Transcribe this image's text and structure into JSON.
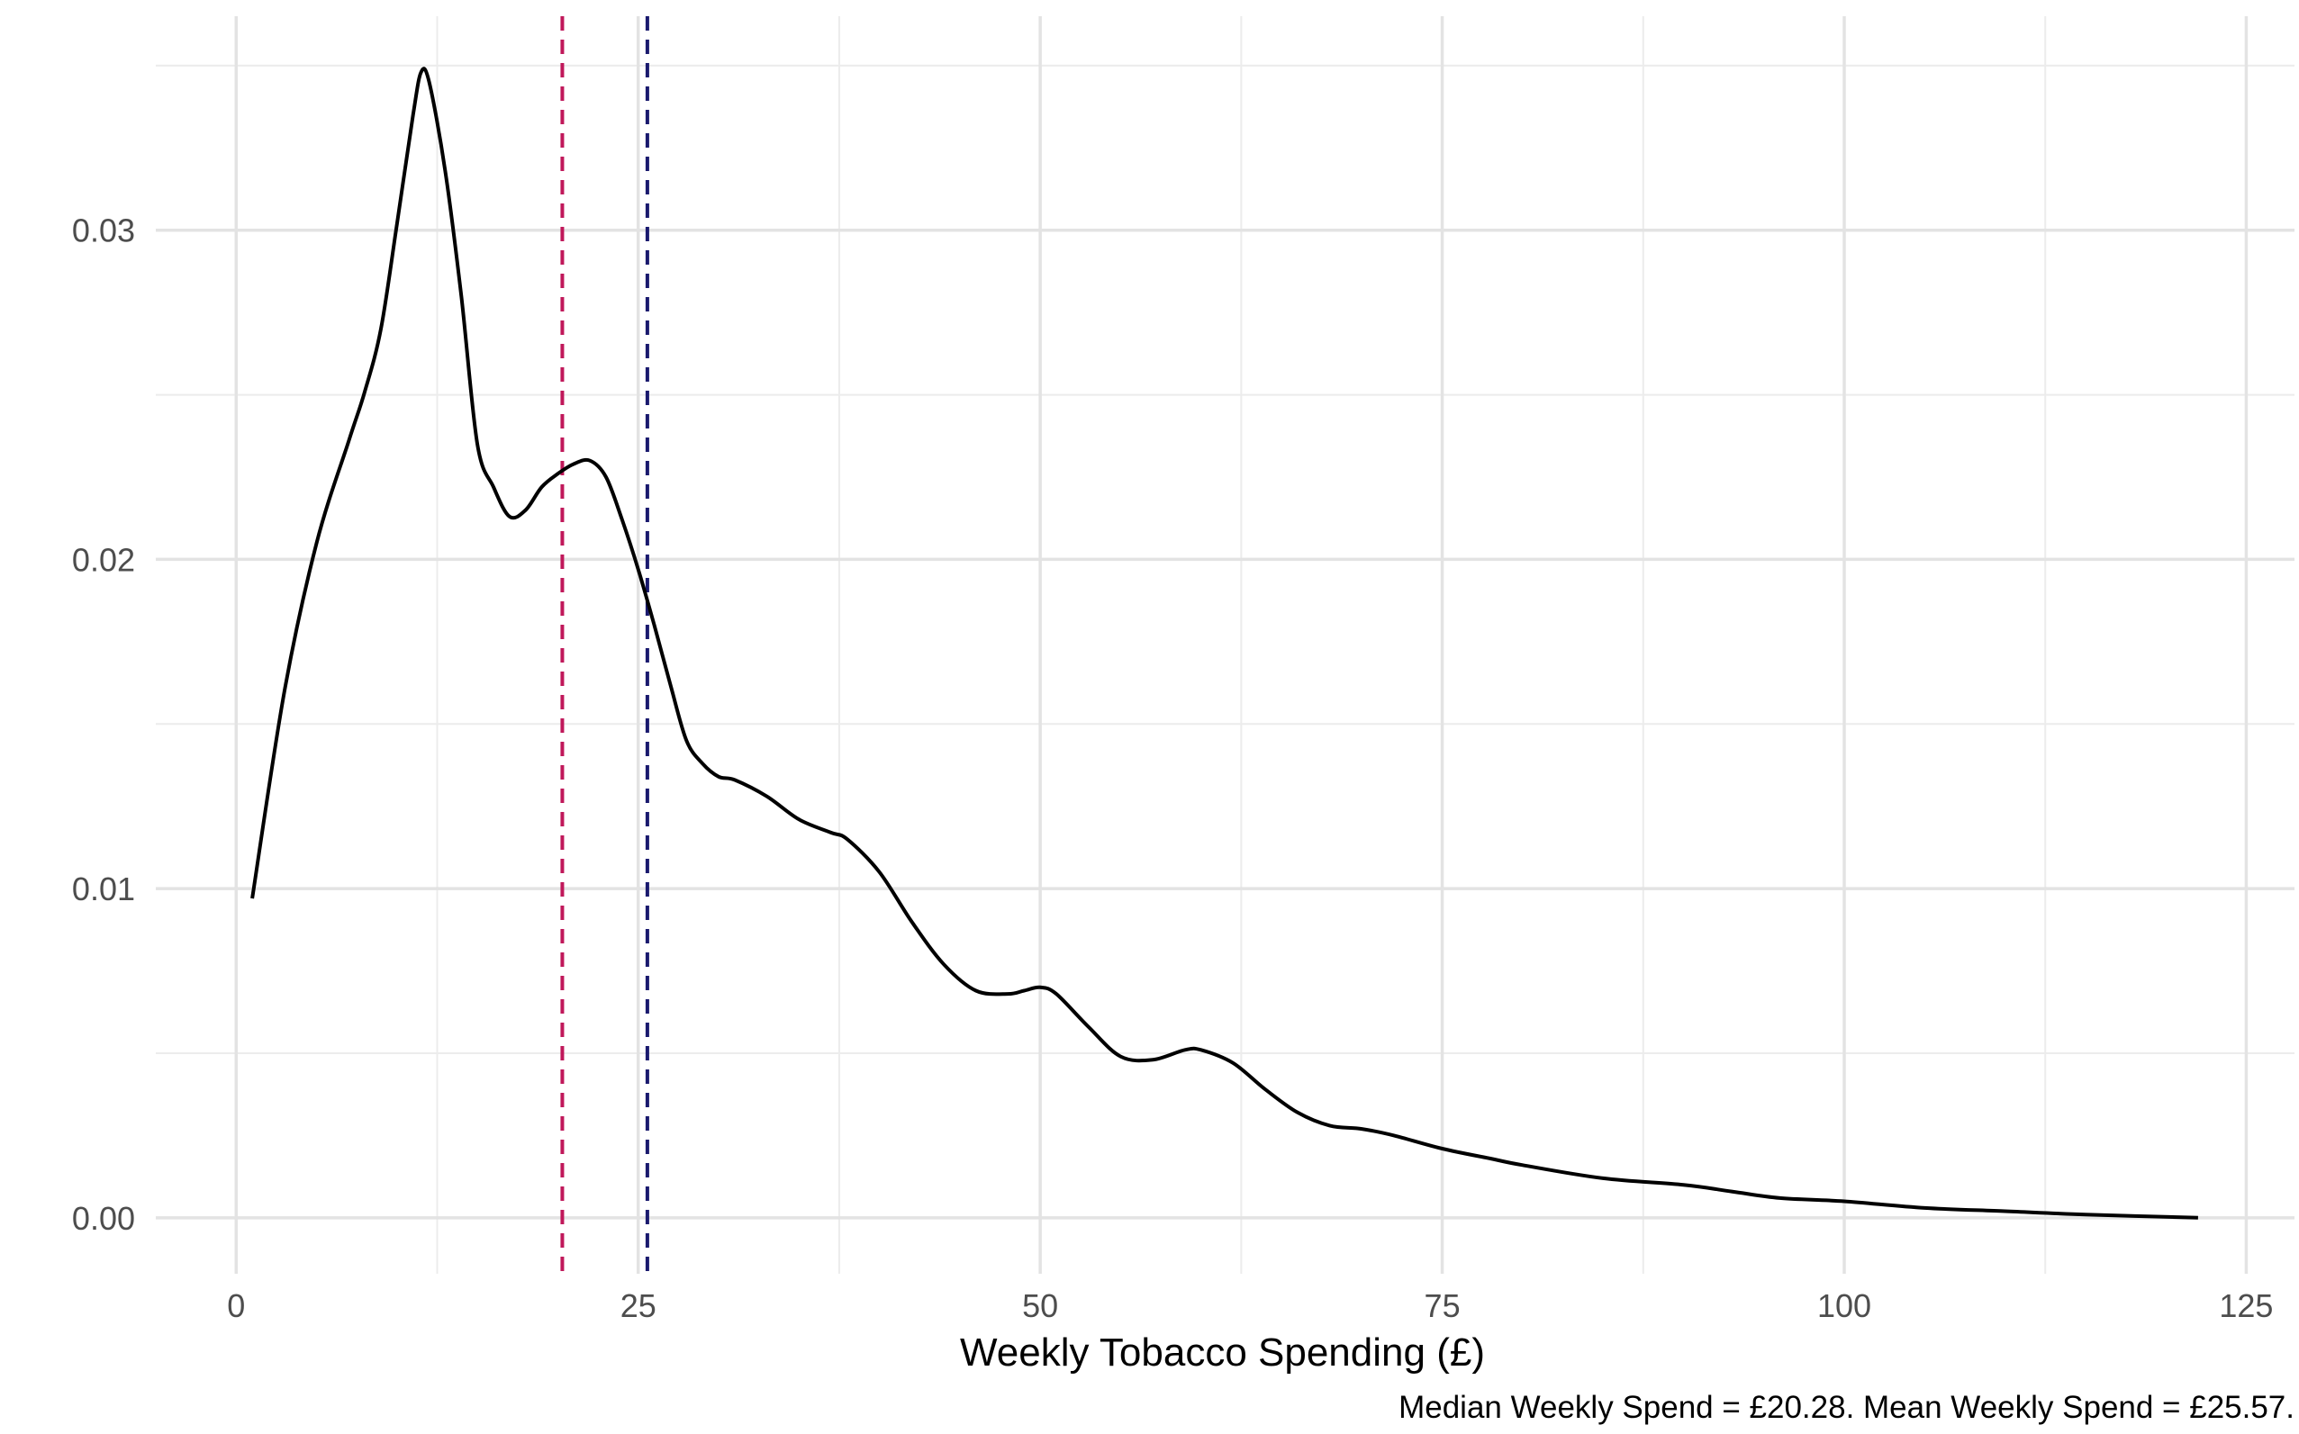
{
  "chart_data": {
    "type": "line",
    "title": "",
    "xlabel": "Weekly Tobacco Spending (£)",
    "ylabel": "",
    "caption": "Median Weekly Spend = £20.28. Mean Weekly Spend = £25.57.",
    "xlim": [
      -5,
      128
    ],
    "ylim": [
      -0.0017,
      0.0365
    ],
    "x_ticks": [
      0,
      25,
      50,
      75,
      100,
      125
    ],
    "x_tick_labels": [
      "0",
      "25",
      "50",
      "75",
      "100",
      "125"
    ],
    "y_ticks": [
      0.0,
      0.01,
      0.02,
      0.03
    ],
    "y_tick_labels": [
      "0.00",
      "0.01",
      "0.02",
      "0.03"
    ],
    "grid": true,
    "legend": "none",
    "series": [
      {
        "color": "#000000",
        "x": [
          1,
          3,
          5,
          7,
          8,
          9,
          10,
          11,
          11.5,
          12,
          13,
          14,
          15,
          16,
          17,
          18,
          19,
          20,
          21,
          22,
          23,
          24,
          25,
          26,
          27,
          28,
          29,
          30,
          31,
          33,
          35,
          37,
          38,
          40,
          42,
          44,
          46,
          48,
          49,
          50,
          51,
          53,
          55,
          57,
          59,
          60,
          62,
          64,
          66,
          68,
          70,
          72,
          75,
          78,
          80,
          85,
          90,
          93,
          96,
          100,
          105,
          110,
          115,
          122
        ],
        "y": [
          0.0097,
          0.016,
          0.0205,
          0.0236,
          0.0251,
          0.027,
          0.0302,
          0.0335,
          0.0348,
          0.0345,
          0.0318,
          0.028,
          0.0235,
          0.0222,
          0.0213,
          0.0215,
          0.0222,
          0.0226,
          0.0229,
          0.023,
          0.0225,
          0.0212,
          0.0197,
          0.018,
          0.0162,
          0.0145,
          0.0138,
          0.0134,
          0.0133,
          0.0128,
          0.0121,
          0.0117,
          0.0115,
          0.0105,
          0.009,
          0.0077,
          0.0069,
          0.0068,
          0.0069,
          0.007,
          0.0068,
          0.0058,
          0.0049,
          0.0048,
          0.0051,
          0.0051,
          0.0047,
          0.0039,
          0.0032,
          0.0028,
          0.0027,
          0.0025,
          0.0021,
          0.0018,
          0.0016,
          0.0012,
          0.001,
          0.0008,
          0.0006,
          0.0005,
          0.0003,
          0.0002,
          0.0001,
          0.0
        ]
      }
    ],
    "reference_lines": [
      {
        "x": 20.28,
        "color": "#c0185a",
        "style": "dashed"
      },
      {
        "x": 25.57,
        "color": "#1a1a6e",
        "style": "dashed"
      }
    ]
  }
}
